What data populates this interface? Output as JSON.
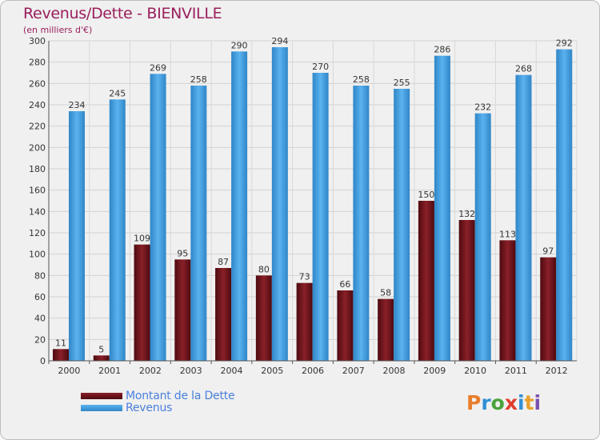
{
  "header": {
    "title": "Revenus/Dette - BIENVILLE",
    "subtitle": "(en milliers d'€)"
  },
  "logo": {
    "text": "Proxiti",
    "letter_colors": [
      "#e87d2b",
      "#2f8fd6",
      "#4aa33c",
      "#e03c2e",
      "#2f8fd6",
      "#e8a12b",
      "#7b4fb0"
    ]
  },
  "colors": {
    "dette": "#6e1218",
    "revenus": "#3d99dc",
    "title": "#9a1e5c",
    "legend_text": "#4a7fe0"
  },
  "chart_data": {
    "type": "bar",
    "categories": [
      "2000",
      "2001",
      "2002",
      "2003",
      "2004",
      "2005",
      "2006",
      "2007",
      "2008",
      "2009",
      "2010",
      "2011",
      "2012"
    ],
    "series": [
      {
        "name": "Montant de la Dette",
        "values": [
          11,
          5,
          109,
          95,
          87,
          80,
          73,
          66,
          58,
          150,
          132,
          113,
          97
        ]
      },
      {
        "name": "Revenus",
        "values": [
          234,
          245,
          269,
          258,
          290,
          294,
          270,
          258,
          255,
          286,
          232,
          268,
          292
        ]
      }
    ],
    "yticks": [
      0,
      20,
      40,
      60,
      80,
      100,
      120,
      140,
      160,
      180,
      200,
      220,
      240,
      260,
      280,
      300
    ],
    "ylim": [
      0,
      300
    ],
    "grid": true,
    "legend_position": "bottom-left"
  }
}
